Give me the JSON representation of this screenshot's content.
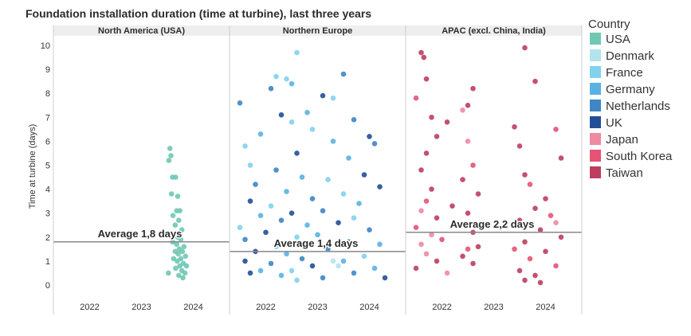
{
  "chart_data": {
    "type": "scatter",
    "title": "Foundation installation duration (time at turbine), last three years",
    "ylabel": "Time at turbine (days)",
    "ylim": [
      -0.5,
      10.4
    ],
    "yticks": [
      "0",
      "1",
      "2",
      "3",
      "4",
      "5",
      "6",
      "7",
      "8",
      "9",
      "10"
    ],
    "xticks": [
      "2022",
      "2023",
      "2024"
    ],
    "xlim": [
      2021.3,
      2024.7
    ],
    "panels": [
      {
        "title": "North America (USA)",
        "average": 1.8,
        "average_label": "Average 1,8 days",
        "points": [
          {
            "country": "USA",
            "x": 2023.55,
            "y": 5.7
          },
          {
            "country": "USA",
            "x": 2023.57,
            "y": 5.4
          },
          {
            "country": "USA",
            "x": 2023.53,
            "y": 5.2
          },
          {
            "country": "USA",
            "x": 2023.6,
            "y": 4.5
          },
          {
            "country": "USA",
            "x": 2023.66,
            "y": 4.5
          },
          {
            "country": "USA",
            "x": 2023.58,
            "y": 3.8
          },
          {
            "country": "USA",
            "x": 2023.7,
            "y": 3.7
          },
          {
            "country": "USA",
            "x": 2023.68,
            "y": 3.1
          },
          {
            "country": "USA",
            "x": 2023.74,
            "y": 3.1
          },
          {
            "country": "USA",
            "x": 2023.61,
            "y": 2.9
          },
          {
            "country": "USA",
            "x": 2023.72,
            "y": 2.7
          },
          {
            "country": "USA",
            "x": 2023.65,
            "y": 2.5
          },
          {
            "country": "USA",
            "x": 2023.78,
            "y": 2.3
          },
          {
            "country": "USA",
            "x": 2023.63,
            "y": 2.1
          },
          {
            "country": "USA",
            "x": 2023.7,
            "y": 2.0
          },
          {
            "country": "USA",
            "x": 2023.76,
            "y": 1.9
          },
          {
            "country": "USA",
            "x": 2023.6,
            "y": 1.8
          },
          {
            "country": "USA",
            "x": 2023.68,
            "y": 1.7
          },
          {
            "country": "USA",
            "x": 2023.82,
            "y": 1.6
          },
          {
            "country": "USA",
            "x": 2023.73,
            "y": 1.5
          },
          {
            "country": "USA",
            "x": 2023.65,
            "y": 1.4
          },
          {
            "country": "USA",
            "x": 2023.79,
            "y": 1.4
          },
          {
            "country": "USA",
            "x": 2023.71,
            "y": 1.3
          },
          {
            "country": "USA",
            "x": 2023.85,
            "y": 1.2
          },
          {
            "country": "USA",
            "x": 2023.62,
            "y": 1.1
          },
          {
            "country": "USA",
            "x": 2023.76,
            "y": 1.1
          },
          {
            "country": "USA",
            "x": 2023.69,
            "y": 1.0
          },
          {
            "country": "USA",
            "x": 2023.81,
            "y": 0.9
          },
          {
            "country": "USA",
            "x": 2023.74,
            "y": 0.8
          },
          {
            "country": "USA",
            "x": 2023.87,
            "y": 0.8
          },
          {
            "country": "USA",
            "x": 2023.66,
            "y": 0.7
          },
          {
            "country": "USA",
            "x": 2023.78,
            "y": 0.6
          },
          {
            "country": "USA",
            "x": 2023.52,
            "y": 0.5
          },
          {
            "country": "USA",
            "x": 2023.84,
            "y": 0.5
          },
          {
            "country": "USA",
            "x": 2023.72,
            "y": 0.4
          },
          {
            "country": "USA",
            "x": 2023.8,
            "y": 0.3
          }
        ]
      },
      {
        "title": "Northern Europe",
        "average": 1.4,
        "average_label": "Average 1,4 days",
        "points": [
          {
            "country": "France",
            "x": 2022.6,
            "y": 9.7
          },
          {
            "country": "France",
            "x": 2022.2,
            "y": 8.7
          },
          {
            "country": "France",
            "x": 2022.4,
            "y": 8.6
          },
          {
            "country": "Germany",
            "x": 2022.5,
            "y": 8.4
          },
          {
            "country": "Netherlands",
            "x": 2023.5,
            "y": 8.8
          },
          {
            "country": "Netherlands",
            "x": 2022.1,
            "y": 8.2
          },
          {
            "country": "UK",
            "x": 2023.1,
            "y": 7.9
          },
          {
            "country": "France",
            "x": 2023.3,
            "y": 7.8
          },
          {
            "country": "Netherlands",
            "x": 2021.5,
            "y": 7.6
          },
          {
            "country": "Germany",
            "x": 2022.8,
            "y": 7.2
          },
          {
            "country": "UK",
            "x": 2022.3,
            "y": 7.1
          },
          {
            "country": "France",
            "x": 2022.5,
            "y": 6.8
          },
          {
            "country": "Netherlands",
            "x": 2023.7,
            "y": 6.9
          },
          {
            "country": "Germany",
            "x": 2021.9,
            "y": 6.3
          },
          {
            "country": "France",
            "x": 2022.9,
            "y": 6.5
          },
          {
            "country": "UK",
            "x": 2024.0,
            "y": 6.2
          },
          {
            "country": "Germany",
            "x": 2023.3,
            "y": 6.0
          },
          {
            "country": "Netherlands",
            "x": 2024.1,
            "y": 5.9
          },
          {
            "country": "France",
            "x": 2021.6,
            "y": 5.8
          },
          {
            "country": "UK",
            "x": 2022.6,
            "y": 5.5
          },
          {
            "country": "Germany",
            "x": 2023.6,
            "y": 5.3
          },
          {
            "country": "France",
            "x": 2021.7,
            "y": 5.0
          },
          {
            "country": "Netherlands",
            "x": 2022.2,
            "y": 4.8
          },
          {
            "country": "UK",
            "x": 2023.9,
            "y": 4.6
          },
          {
            "country": "Germany",
            "x": 2022.7,
            "y": 4.5
          },
          {
            "country": "France",
            "x": 2023.2,
            "y": 4.4
          },
          {
            "country": "Netherlands",
            "x": 2021.8,
            "y": 4.2
          },
          {
            "country": "UK",
            "x": 2024.2,
            "y": 4.1
          },
          {
            "country": "Germany",
            "x": 2022.4,
            "y": 3.9
          },
          {
            "country": "France",
            "x": 2023.5,
            "y": 3.8
          },
          {
            "country": "Netherlands",
            "x": 2022.9,
            "y": 3.6
          },
          {
            "country": "UK",
            "x": 2021.7,
            "y": 3.5
          },
          {
            "country": "Germany",
            "x": 2023.8,
            "y": 3.4
          },
          {
            "country": "France",
            "x": 2022.1,
            "y": 3.3
          },
          {
            "country": "Netherlands",
            "x": 2023.1,
            "y": 3.1
          },
          {
            "country": "UK",
            "x": 2022.5,
            "y": 3.0
          },
          {
            "country": "Germany",
            "x": 2021.9,
            "y": 2.9
          },
          {
            "country": "France",
            "x": 2023.7,
            "y": 2.8
          },
          {
            "country": "Netherlands",
            "x": 2022.3,
            "y": 2.7
          },
          {
            "country": "UK",
            "x": 2023.4,
            "y": 2.6
          },
          {
            "country": "Germany",
            "x": 2022.8,
            "y": 2.5
          },
          {
            "country": "France",
            "x": 2021.5,
            "y": 2.4
          },
          {
            "country": "Netherlands",
            "x": 2024.0,
            "y": 2.3
          },
          {
            "country": "UK",
            "x": 2022.0,
            "y": 2.2
          },
          {
            "country": "Germany",
            "x": 2023.0,
            "y": 2.1
          },
          {
            "country": "France",
            "x": 2022.6,
            "y": 2.0
          },
          {
            "country": "Netherlands",
            "x": 2021.6,
            "y": 1.9
          },
          {
            "country": "UK",
            "x": 2023.6,
            "y": 1.8
          },
          {
            "country": "Germany",
            "x": 2024.2,
            "y": 1.7
          },
          {
            "country": "France",
            "x": 2022.2,
            "y": 1.6
          },
          {
            "country": "Netherlands",
            "x": 2023.2,
            "y": 1.5
          },
          {
            "country": "UK",
            "x": 2021.8,
            "y": 1.4
          },
          {
            "country": "Germany",
            "x": 2022.4,
            "y": 1.3
          },
          {
            "country": "France",
            "x": 2023.9,
            "y": 1.2
          },
          {
            "country": "Netherlands",
            "x": 2022.7,
            "y": 1.1
          },
          {
            "country": "UK",
            "x": 2021.6,
            "y": 1.0
          },
          {
            "country": "Germany",
            "x": 2023.5,
            "y": 1.0
          },
          {
            "country": "Denmark",
            "x": 2023.3,
            "y": 1.0
          },
          {
            "country": "Denmark",
            "x": 2023.4,
            "y": 0.8
          },
          {
            "country": "Netherlands",
            "x": 2022.1,
            "y": 0.9
          },
          {
            "country": "UK",
            "x": 2022.9,
            "y": 0.8
          },
          {
            "country": "Germany",
            "x": 2024.1,
            "y": 0.7
          },
          {
            "country": "France",
            "x": 2022.5,
            "y": 0.6
          },
          {
            "country": "Netherlands",
            "x": 2023.7,
            "y": 0.5
          },
          {
            "country": "UK",
            "x": 2021.7,
            "y": 0.5
          },
          {
            "country": "Germany",
            "x": 2022.3,
            "y": 0.4
          },
          {
            "country": "France",
            "x": 2022.6,
            "y": 0.2
          },
          {
            "country": "Netherlands",
            "x": 2023.1,
            "y": 0.3
          },
          {
            "country": "UK",
            "x": 2024.3,
            "y": 0.3
          },
          {
            "country": "Germany",
            "x": 2021.9,
            "y": 0.6
          }
        ]
      },
      {
        "title": "APAC (excl. China, India)",
        "average": 2.2,
        "average_label": "Average 2,2 days",
        "points": [
          {
            "country": "Taiwan",
            "x": 2021.6,
            "y": 9.7
          },
          {
            "country": "Taiwan",
            "x": 2021.65,
            "y": 9.5
          },
          {
            "country": "Taiwan",
            "x": 2023.6,
            "y": 9.9
          },
          {
            "country": "Taiwan",
            "x": 2021.7,
            "y": 8.6
          },
          {
            "country": "Taiwan",
            "x": 2023.8,
            "y": 8.5
          },
          {
            "country": "Taiwan",
            "x": 2022.6,
            "y": 8.2
          },
          {
            "country": "South Korea",
            "x": 2021.5,
            "y": 7.8
          },
          {
            "country": "Taiwan",
            "x": 2022.5,
            "y": 7.5
          },
          {
            "country": "Japan",
            "x": 2022.4,
            "y": 7.3
          },
          {
            "country": "Taiwan",
            "x": 2021.8,
            "y": 7.0
          },
          {
            "country": "Taiwan",
            "x": 2022.1,
            "y": 6.8
          },
          {
            "country": "Taiwan",
            "x": 2023.4,
            "y": 6.6
          },
          {
            "country": "South Korea",
            "x": 2024.2,
            "y": 6.5
          },
          {
            "country": "Taiwan",
            "x": 2021.9,
            "y": 6.2
          },
          {
            "country": "Japan",
            "x": 2022.5,
            "y": 6.0
          },
          {
            "country": "Taiwan",
            "x": 2023.5,
            "y": 5.8
          },
          {
            "country": "Taiwan",
            "x": 2021.7,
            "y": 5.5
          },
          {
            "country": "Taiwan",
            "x": 2024.3,
            "y": 5.3
          },
          {
            "country": "South Korea",
            "x": 2022.6,
            "y": 5.0
          },
          {
            "country": "Taiwan",
            "x": 2021.6,
            "y": 4.8
          },
          {
            "country": "Taiwan",
            "x": 2023.6,
            "y": 4.6
          },
          {
            "country": "Taiwan",
            "x": 2022.4,
            "y": 4.4
          },
          {
            "country": "South Korea",
            "x": 2023.7,
            "y": 4.2
          },
          {
            "country": "Taiwan",
            "x": 2021.8,
            "y": 4.0
          },
          {
            "country": "Taiwan",
            "x": 2022.7,
            "y": 3.8
          },
          {
            "country": "Taiwan",
            "x": 2024.0,
            "y": 3.6
          },
          {
            "country": "South Korea",
            "x": 2021.7,
            "y": 3.5
          },
          {
            "country": "Taiwan",
            "x": 2022.2,
            "y": 3.3
          },
          {
            "country": "Taiwan",
            "x": 2023.8,
            "y": 3.2
          },
          {
            "country": "Japan",
            "x": 2021.6,
            "y": 3.1
          },
          {
            "country": "Taiwan",
            "x": 2022.5,
            "y": 3.0
          },
          {
            "country": "South Korea",
            "x": 2024.1,
            "y": 2.9
          },
          {
            "country": "Taiwan",
            "x": 2021.9,
            "y": 2.8
          },
          {
            "country": "Taiwan",
            "x": 2023.5,
            "y": 2.7
          },
          {
            "country": "Japan",
            "x": 2024.2,
            "y": 2.6
          },
          {
            "country": "Taiwan",
            "x": 2022.3,
            "y": 2.5
          },
          {
            "country": "South Korea",
            "x": 2021.5,
            "y": 2.4
          },
          {
            "country": "Taiwan",
            "x": 2023.9,
            "y": 2.3
          },
          {
            "country": "Taiwan",
            "x": 2022.6,
            "y": 2.2
          },
          {
            "country": "Japan",
            "x": 2021.8,
            "y": 2.1
          },
          {
            "country": "Taiwan",
            "x": 2024.3,
            "y": 2.0
          },
          {
            "country": "South Korea",
            "x": 2022.0,
            "y": 1.9
          },
          {
            "country": "Taiwan",
            "x": 2023.6,
            "y": 1.8
          },
          {
            "country": "Japan",
            "x": 2021.6,
            "y": 1.7
          },
          {
            "country": "Taiwan",
            "x": 2022.7,
            "y": 1.6
          },
          {
            "country": "South Korea",
            "x": 2023.4,
            "y": 1.5
          },
          {
            "country": "Taiwan",
            "x": 2024.0,
            "y": 1.4
          },
          {
            "country": "Japan",
            "x": 2021.7,
            "y": 1.3
          },
          {
            "country": "Taiwan",
            "x": 2022.4,
            "y": 1.2
          },
          {
            "country": "South Korea",
            "x": 2023.7,
            "y": 1.1
          },
          {
            "country": "Taiwan",
            "x": 2021.9,
            "y": 1.0
          },
          {
            "country": "Taiwan",
            "x": 2022.6,
            "y": 0.9
          },
          {
            "country": "South Korea",
            "x": 2024.2,
            "y": 0.8
          },
          {
            "country": "Taiwan",
            "x": 2021.5,
            "y": 0.7
          },
          {
            "country": "Taiwan",
            "x": 2023.5,
            "y": 0.6
          },
          {
            "country": "Japan",
            "x": 2022.1,
            "y": 0.5
          },
          {
            "country": "Taiwan",
            "x": 2023.8,
            "y": 0.4
          },
          {
            "country": "Taiwan",
            "x": 2023.6,
            "y": 0.2
          },
          {
            "country": "South Korea",
            "x": 2022.5,
            "y": 1.5
          },
          {
            "country": "Taiwan",
            "x": 2023.9,
            "y": 0.1
          }
        ]
      }
    ],
    "legend": {
      "title": "Country",
      "position": "right",
      "items": [
        {
          "label": "USA",
          "color": "#6fc8b4"
        },
        {
          "label": "Denmark",
          "color": "#b3e3ec"
        },
        {
          "label": "France",
          "color": "#82d2ee"
        },
        {
          "label": "Germany",
          "color": "#5ab1e3"
        },
        {
          "label": "Netherlands",
          "color": "#3e86c4"
        },
        {
          "label": "UK",
          "color": "#224f97"
        },
        {
          "label": "Japan",
          "color": "#ee8aa1"
        },
        {
          "label": "South Korea",
          "color": "#e65374"
        },
        {
          "label": "Taiwan",
          "color": "#be3e5e"
        }
      ]
    }
  }
}
